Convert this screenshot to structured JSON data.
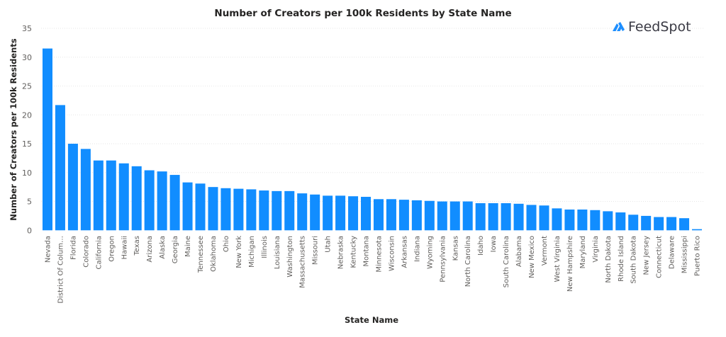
{
  "logo": {
    "text": "FeedSpot",
    "icon": "feedspot-logo-icon",
    "color": "#1e8fff"
  },
  "chart_data": {
    "type": "bar",
    "title": "Number of Creators per 100k Residents by State Name",
    "xlabel": "State Name",
    "ylabel": "Number of Creators per 100k Residents",
    "ylim": [
      0,
      35
    ],
    "yticks": [
      0,
      5,
      10,
      15,
      20,
      25,
      30,
      35
    ],
    "grid": true,
    "bar_color": "#118dff",
    "categories": [
      "Nevada",
      "District Of Colum…",
      "Florida",
      "Colorado",
      "California",
      "Oregon",
      "Hawaii",
      "Texas",
      "Arizona",
      "Alaska",
      "Georgia",
      "Maine",
      "Tennessee",
      "Oklahoma",
      "Ohio",
      "New York",
      "Michigan",
      "Illinois",
      "Louisiana",
      "Washington",
      "Massachusetts",
      "Missouri",
      "Utah",
      "Nebraska",
      "Kentucky",
      "Montana",
      "Minnesota",
      "Wisconsin",
      "Arkansas",
      "Indiana",
      "Wyoming",
      "Pennsylvania",
      "Kansas",
      "North Carolina",
      "Idaho",
      "Iowa",
      "South Carolina",
      "Alabama",
      "New Mexico",
      "Vermont",
      "West Virginia",
      "New Hampshire",
      "Maryland",
      "Virginia",
      "North Dakota",
      "Rhode Island",
      "South Dakota",
      "New Jersey",
      "Connecticut",
      "Delaware",
      "Mississippi",
      "Puerto Rico"
    ],
    "values": [
      31.5,
      21.7,
      15.0,
      14.1,
      12.1,
      12.1,
      11.6,
      11.1,
      10.4,
      10.2,
      9.6,
      8.3,
      8.1,
      7.5,
      7.3,
      7.2,
      7.1,
      6.9,
      6.8,
      6.8,
      6.4,
      6.2,
      6.0,
      6.0,
      5.9,
      5.8,
      5.4,
      5.4,
      5.3,
      5.2,
      5.1,
      5.0,
      5.0,
      5.0,
      4.7,
      4.7,
      4.7,
      4.6,
      4.4,
      4.3,
      3.8,
      3.6,
      3.6,
      3.5,
      3.3,
      3.1,
      2.7,
      2.5,
      2.3,
      2.3,
      2.1,
      0.2
    ]
  }
}
